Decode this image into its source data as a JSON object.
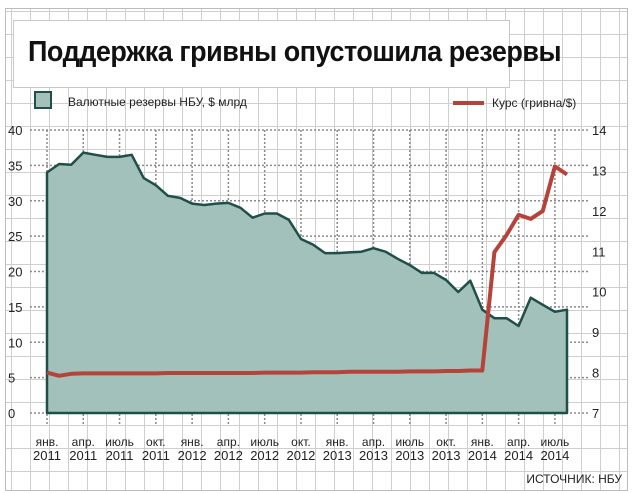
{
  "chart_data": {
    "type": "area+line",
    "title": "Поддержка гривны опустошила резервы",
    "source": "ИСТОЧНИК: НБУ",
    "x_labels": [
      [
        "янв.",
        "2011"
      ],
      [
        "апр.",
        "2011"
      ],
      [
        "июль",
        "2011"
      ],
      [
        "окт.",
        "2011"
      ],
      [
        "янв.",
        "2012"
      ],
      [
        "апр.",
        "2012"
      ],
      [
        "июль",
        "2012"
      ],
      [
        "окт.",
        "2012"
      ],
      [
        "янв.",
        "2013"
      ],
      [
        "апр.",
        "2013"
      ],
      [
        "июль",
        "2013"
      ],
      [
        "окт.",
        "2013"
      ],
      [
        "янв.",
        "2014"
      ],
      [
        "апр.",
        "2014"
      ],
      [
        "июль",
        "2014"
      ]
    ],
    "x_range_months": "Jan 2011 – Aug 2014",
    "left_axis": {
      "ylim": [
        0,
        40
      ],
      "ticks": [
        0,
        5,
        10,
        15,
        20,
        25,
        30,
        35,
        40
      ]
    },
    "right_axis": {
      "ylim": [
        7,
        14
      ],
      "ticks": [
        7,
        8,
        9,
        10,
        11,
        12,
        13,
        14
      ]
    },
    "series": [
      {
        "name": "Валютные резервы НБУ, $ млрд",
        "legend": "Валютные резервы НБУ, $ млрд",
        "axis": "left",
        "type": "area",
        "color": "#a1c1ba",
        "stroke": "#1f4f48",
        "values": [
          34.0,
          35.2,
          35.1,
          36.8,
          36.5,
          36.2,
          36.2,
          36.5,
          33.2,
          32.2,
          30.7,
          30.4,
          29.6,
          29.4,
          29.6,
          29.7,
          29.0,
          27.6,
          28.2,
          28.2,
          27.3,
          24.6,
          23.8,
          22.6,
          22.6,
          22.7,
          22.8,
          23.3,
          22.8,
          21.8,
          20.9,
          19.8,
          19.8,
          18.8,
          17.1,
          18.7,
          14.6,
          13.4,
          13.4,
          12.3,
          16.3,
          15.3,
          14.3,
          14.6
        ]
      },
      {
        "name": "Курс (гривна/$)",
        "legend": "Курс (гривна/$)",
        "axis": "right",
        "type": "line",
        "color": "#b5433a",
        "values": [
          8.0,
          7.92,
          7.97,
          7.98,
          7.98,
          7.98,
          7.98,
          7.98,
          7.98,
          7.98,
          7.99,
          7.99,
          7.99,
          7.99,
          7.99,
          7.99,
          7.99,
          7.99,
          8.0,
          8.0,
          8.0,
          8.0,
          8.01,
          8.01,
          8.01,
          8.02,
          8.02,
          8.02,
          8.02,
          8.02,
          8.03,
          8.03,
          8.03,
          8.04,
          8.04,
          8.05,
          8.05,
          10.98,
          11.4,
          11.9,
          11.8,
          12.0,
          13.1,
          12.9
        ]
      }
    ]
  }
}
